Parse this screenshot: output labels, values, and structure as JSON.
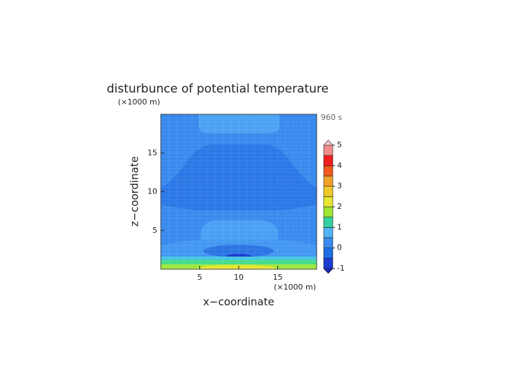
{
  "chart_data": {
    "type": "contour",
    "title": "disturbunce of potential temperature",
    "time_label": "960 s",
    "xlabel": "x−coordinate",
    "ylabel": "z−coordinate",
    "x_unit": "(×1000 m)",
    "y_unit": "(×1000 m)",
    "xlim": [
      0,
      20
    ],
    "ylim": [
      0,
      20
    ],
    "xticks": [
      5,
      10,
      15
    ],
    "yticks": [
      5,
      10,
      15
    ],
    "colorbar": {
      "levels": [
        -1,
        -0.5,
        0,
        0.5,
        1,
        1.5,
        2,
        2.5,
        3,
        3.5,
        4,
        4.5,
        5
      ],
      "colors": [
        "#1e3cd2",
        "#1e6ee6",
        "#3c8cf0",
        "#50b4f5",
        "#32d2a0",
        "#a0e632",
        "#e6e632",
        "#f0c828",
        "#f0a028",
        "#f05a1e",
        "#f01e1e",
        "#f08c8c"
      ],
      "under_color": "#1428b4",
      "over_color": "#f5c8c8",
      "ticks": [
        -1,
        0,
        1,
        2,
        3,
        4,
        5
      ]
    }
  }
}
